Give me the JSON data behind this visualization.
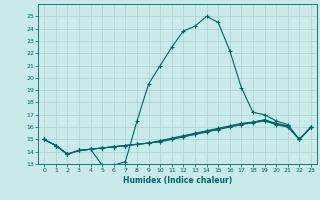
{
  "title": "",
  "xlabel": "Humidex (Indice chaleur)",
  "ylabel": "",
  "background_color": "#c8eaea",
  "grid_color": "#b0d0d0",
  "line_color": "#006666",
  "x": [
    0,
    1,
    2,
    3,
    4,
    5,
    6,
    7,
    8,
    9,
    10,
    11,
    12,
    13,
    14,
    15,
    16,
    17,
    18,
    19,
    20,
    21,
    22,
    23
  ],
  "line_main": [
    15.0,
    14.5,
    13.8,
    14.1,
    14.2,
    12.9,
    12.9,
    13.2,
    16.5,
    19.5,
    21.0,
    22.5,
    23.8,
    24.2,
    25.0,
    24.5,
    22.2,
    19.2,
    17.2,
    17.0,
    16.5,
    16.2,
    15.0,
    16.0
  ],
  "line2": [
    15.0,
    14.5,
    13.8,
    14.1,
    14.2,
    14.3,
    14.4,
    14.5,
    14.6,
    14.7,
    14.9,
    15.1,
    15.3,
    15.5,
    15.7,
    15.9,
    16.1,
    16.3,
    16.4,
    16.6,
    16.3,
    16.1,
    15.0,
    16.0
  ],
  "line3": [
    15.0,
    14.5,
    13.8,
    14.1,
    14.2,
    14.3,
    14.4,
    14.5,
    14.6,
    14.7,
    14.85,
    15.05,
    15.25,
    15.45,
    15.65,
    15.85,
    16.05,
    16.25,
    16.4,
    16.55,
    16.25,
    16.05,
    15.0,
    16.0
  ],
  "line4": [
    15.0,
    14.5,
    13.8,
    14.1,
    14.2,
    14.3,
    14.4,
    14.5,
    14.6,
    14.7,
    14.8,
    15.0,
    15.2,
    15.4,
    15.6,
    15.8,
    16.0,
    16.2,
    16.35,
    16.5,
    16.2,
    16.0,
    15.0,
    16.0
  ],
  "ylim": [
    13,
    26
  ],
  "xlim": [
    -0.5,
    23.5
  ],
  "yticks": [
    13,
    14,
    15,
    16,
    17,
    18,
    19,
    20,
    21,
    22,
    23,
    24,
    25
  ],
  "xticks": [
    0,
    1,
    2,
    3,
    4,
    5,
    6,
    7,
    8,
    9,
    10,
    11,
    12,
    13,
    14,
    15,
    16,
    17,
    18,
    19,
    20,
    21,
    22,
    23
  ]
}
